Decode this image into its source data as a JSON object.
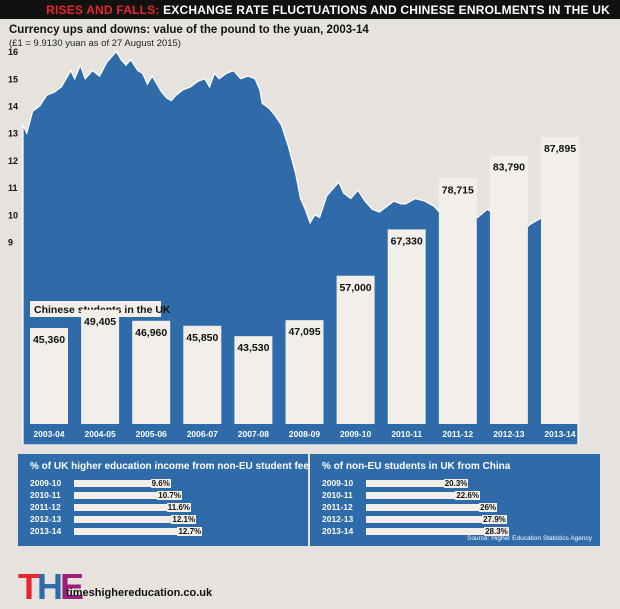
{
  "header": {
    "accent": "RISES AND FALLS:",
    "title": "EXCHANGE RATE FLUCTUATIONS AND CHINESE ENROLMENTS IN THE UK"
  },
  "colors": {
    "blue": "#2e6ba8",
    "bar": "#f2efea",
    "red": "#e8262f",
    "dark": "#111111",
    "bg": "#e6e3de"
  },
  "chart_data": [
    {
      "type": "area",
      "title": "Currency ups and downs: value of the pound to the yuan, 2003-14",
      "subtitle": "(£1 = 9.9130 yuan as of 27 August 2015)",
      "ylim": [
        9,
        16.5
      ],
      "yticks": [
        9,
        10,
        11,
        12,
        13,
        14,
        15,
        16
      ],
      "x_years": [
        2003,
        2014
      ],
      "points": [
        [
          2003.0,
          13.3
        ],
        [
          2003.08,
          13.0
        ],
        [
          2003.2,
          13.8
        ],
        [
          2003.35,
          14.0
        ],
        [
          2003.5,
          14.4
        ],
        [
          2003.65,
          14.5
        ],
        [
          2003.8,
          14.7
        ],
        [
          2003.9,
          15.0
        ],
        [
          2004.0,
          15.3
        ],
        [
          2004.08,
          15.0
        ],
        [
          2004.2,
          15.5
        ],
        [
          2004.3,
          15.0
        ],
        [
          2004.45,
          15.3
        ],
        [
          2004.6,
          15.1
        ],
        [
          2004.75,
          15.6
        ],
        [
          2004.85,
          15.8
        ],
        [
          2004.95,
          16.0
        ],
        [
          2005.05,
          15.7
        ],
        [
          2005.15,
          15.5
        ],
        [
          2005.25,
          15.7
        ],
        [
          2005.4,
          15.3
        ],
        [
          2005.5,
          15.2
        ],
        [
          2005.6,
          14.8
        ],
        [
          2005.7,
          15.1
        ],
        [
          2005.8,
          14.8
        ],
        [
          2005.9,
          14.5
        ],
        [
          2006.0,
          14.3
        ],
        [
          2006.1,
          14.2
        ],
        [
          2006.2,
          14.4
        ],
        [
          2006.35,
          14.6
        ],
        [
          2006.5,
          14.7
        ],
        [
          2006.65,
          14.9
        ],
        [
          2006.8,
          15.0
        ],
        [
          2006.9,
          14.7
        ],
        [
          2007.0,
          15.2
        ],
        [
          2007.1,
          15.0
        ],
        [
          2007.25,
          15.2
        ],
        [
          2007.4,
          15.3
        ],
        [
          2007.55,
          15.0
        ],
        [
          2007.7,
          15.1
        ],
        [
          2007.85,
          15.0
        ],
        [
          2007.95,
          14.6
        ],
        [
          2008.0,
          14.1
        ],
        [
          2008.15,
          13.9
        ],
        [
          2008.25,
          13.7
        ],
        [
          2008.4,
          13.3
        ],
        [
          2008.55,
          12.5
        ],
        [
          2008.7,
          11.5
        ],
        [
          2008.8,
          10.6
        ],
        [
          2008.9,
          10.2
        ],
        [
          2009.0,
          9.7
        ],
        [
          2009.1,
          10.0
        ],
        [
          2009.2,
          9.9
        ],
        [
          2009.35,
          10.7
        ],
        [
          2009.5,
          11.0
        ],
        [
          2009.6,
          11.2
        ],
        [
          2009.7,
          10.8
        ],
        [
          2009.85,
          10.6
        ],
        [
          2010.0,
          10.9
        ],
        [
          2010.15,
          10.5
        ],
        [
          2010.3,
          10.2
        ],
        [
          2010.45,
          10.1
        ],
        [
          2010.6,
          10.3
        ],
        [
          2010.75,
          10.5
        ],
        [
          2010.9,
          10.4
        ],
        [
          2011.0,
          10.4
        ],
        [
          2011.2,
          10.6
        ],
        [
          2011.4,
          10.5
        ],
        [
          2011.6,
          10.3
        ],
        [
          2011.8,
          9.9
        ],
        [
          2011.95,
          10.0
        ],
        [
          2012.1,
          9.95
        ],
        [
          2012.3,
          10.1
        ],
        [
          2012.5,
          9.9
        ],
        [
          2012.7,
          10.2
        ],
        [
          2012.9,
          10.0
        ],
        [
          2013.0,
          10.0
        ],
        [
          2013.15,
          9.5
        ],
        [
          2013.3,
          9.6
        ],
        [
          2013.45,
          9.4
        ],
        [
          2013.6,
          9.65
        ],
        [
          2013.75,
          9.8
        ],
        [
          2013.9,
          9.95
        ],
        [
          2014.0,
          10.1
        ],
        [
          2014.15,
          10.2
        ],
        [
          2014.3,
          10.3
        ],
        [
          2014.45,
          10.4
        ],
        [
          2014.6,
          10.5
        ]
      ]
    },
    {
      "type": "bar",
      "title": "Chinese students in the UK",
      "categories": [
        "2003-04",
        "2004-05",
        "2005-06",
        "2006-07",
        "2007-08",
        "2008-09",
        "2009-10",
        "2010-11",
        "2011-12",
        "2012-13",
        "2013-14"
      ],
      "values": [
        45360,
        49405,
        46960,
        45850,
        43530,
        47095,
        57000,
        67330,
        78715,
        83790,
        87895
      ],
      "value_labels": [
        "45,360",
        "49,405",
        "46,960",
        "45,850",
        "43,530",
        "47,095",
        "57,000",
        "67,330",
        "78,715",
        "83,790",
        "87,895"
      ]
    },
    {
      "type": "bar",
      "title": "% of UK higher education income from non-EU student fees",
      "categories": [
        "2009-10",
        "2010-11",
        "2011-12",
        "2012-13",
        "2013-14"
      ],
      "values": [
        9.6,
        10.7,
        11.6,
        12.1,
        12.7
      ],
      "value_labels": [
        "9.6%",
        "10.7%",
        "11.6%",
        "12.1%",
        "12.7%"
      ],
      "xlim": [
        0,
        22
      ]
    },
    {
      "type": "bar",
      "title": "% of non-EU students in UK from China",
      "categories": [
        "2009-10",
        "2010-11",
        "2011-12",
        "2012-13",
        "2013-14"
      ],
      "values": [
        20.3,
        22.6,
        26,
        27.9,
        28.3
      ],
      "value_labels": [
        "20.3%",
        "22.6%",
        "26%",
        "27.9%",
        "28.3%"
      ],
      "xlim": [
        0,
        44
      ]
    }
  ],
  "source": "Source: Higher Education Statistics Agency",
  "footer": {
    "logo_t": "T",
    "logo_h": "H",
    "logo_e": "E",
    "url": "timeshighereducation.co.uk"
  }
}
